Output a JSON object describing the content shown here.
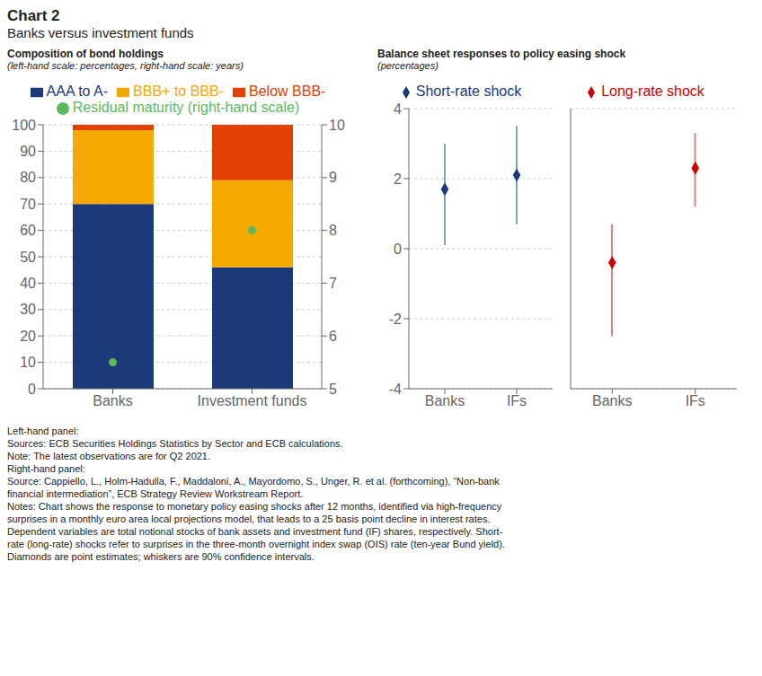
{
  "title": "Chart 2",
  "subtitle": "Banks versus investment funds",
  "annotations": [
    "Left-hand panel:",
    "Sources: ECB Securities Holdings Statistics by Sector and ECB calculations.",
    "Note: The latest observations are for Q2 2021.",
    "Right-hand panel:",
    "Source: Cappiello, L., Holm-Hadulla, F., Maddaloni, A., Mayordomo, S., Unger, R. et al. (forthcoming), “Non-bank",
    "financial intermediation”, ECB Strategy Review Workstream Report.",
    "Notes: Chart shows the response to monetary policy easing shocks after 12 months, identified via high-frequency",
    "surprises in a monthly euro area local projections model, that leads to a 25 basis point decline in interest rates.",
    "Dependent variables are total notional stocks of bank assets and investment fund (IF) shares, respectively. Short-",
    "rate (long-rate) shocks refer to surprises in the three-month overnight index swap (OIS) rate (ten-year Bund yield).",
    "Diamonds are point estimates; whiskers are 90% confidence intervals."
  ],
  "chart_data": [
    {
      "type": "bar",
      "title": "Composition of bond holdings",
      "subtitle": "(left-hand scale: percentages, right-hand scale: years)",
      "stacked": true,
      "grid": true,
      "categories": [
        "Banks",
        "Investment funds"
      ],
      "series": [
        {
          "name": "AAA to A-",
          "color": "#1a3a7a",
          "values": [
            70,
            46
          ]
        },
        {
          "name": "BBB+ to BBB-",
          "color": "#f5a800",
          "values": [
            28,
            33
          ]
        },
        {
          "name": "Below BBB-",
          "color": "#e04000",
          "values": [
            2,
            21
          ]
        },
        {
          "name": "Residual maturity (right-hand scale)",
          "type": "scatter",
          "marker": "circle",
          "axis": "y2",
          "color": "#5cb85c",
          "values": [
            5.5,
            8.0
          ]
        }
      ],
      "ylim": [
        0,
        100
      ],
      "yticks": [
        0,
        10,
        20,
        30,
        40,
        50,
        60,
        70,
        80,
        90,
        100
      ],
      "y2lim": [
        5,
        10
      ],
      "y2ticks": [
        5,
        6,
        7,
        8,
        9,
        10
      ]
    },
    {
      "type": "scatter",
      "title": "Balance sheet responses to policy easing shock",
      "subtitle": "(percentages)",
      "grid": true,
      "categories": [
        "Banks",
        "IFs"
      ],
      "series": [
        {
          "name": "Short-rate shock",
          "marker": "diamond",
          "color": "#1a3a7a",
          "values": [
            1.7,
            2.1
          ],
          "lower": [
            0.1,
            0.7
          ],
          "upper": [
            3.0,
            3.5
          ]
        }
      ],
      "ylim": [
        -4,
        4
      ],
      "yticks": [
        -4,
        -2,
        0,
        2,
        4
      ]
    },
    {
      "type": "scatter",
      "grid": true,
      "tick_labels": "x",
      "categories": [
        "Banks",
        "IFs"
      ],
      "series": [
        {
          "name": "Long-rate shock",
          "marker": "diamond",
          "color": "#cc0000",
          "values": [
            -0.4,
            2.3
          ],
          "lower": [
            -2.5,
            1.2
          ],
          "upper": [
            0.7,
            3.3
          ]
        }
      ],
      "ylim": [
        -4,
        4
      ],
      "yticks": [
        -4,
        -2,
        0,
        2,
        4
      ]
    }
  ]
}
